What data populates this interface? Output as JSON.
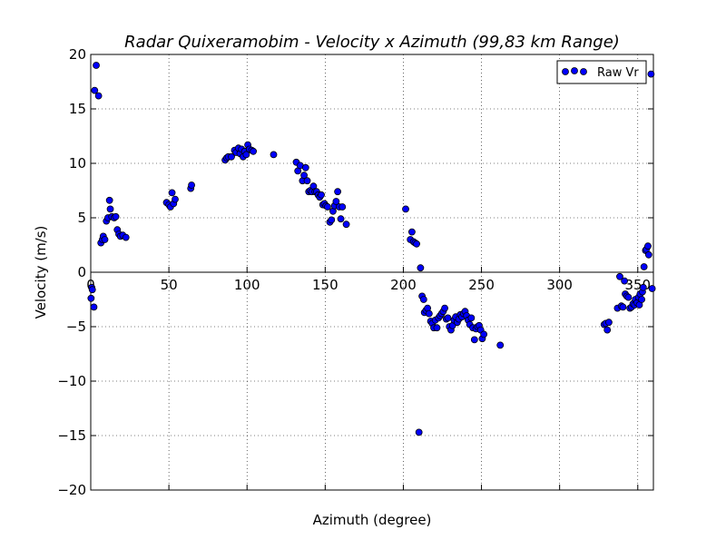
{
  "chart_data": {
    "type": "scatter",
    "title": "Radar Quixeramobim - Velocity x Azimuth (99,83 km Range)",
    "xlabel": "Azimuth (degree)",
    "ylabel": "Velocity (m/s)",
    "xlim": [
      0,
      360
    ],
    "ylim": [
      -20,
      20
    ],
    "x_ticks": [
      0,
      50,
      100,
      150,
      200,
      250,
      300,
      350
    ],
    "y_ticks": [
      -20,
      -15,
      -10,
      -5,
      0,
      5,
      10,
      15,
      20
    ],
    "x_tick_labels": [
      "0",
      "50",
      "100",
      "150",
      "200",
      "250",
      "300",
      "350"
    ],
    "y_tick_labels": [
      "−20",
      "−15",
      "−10",
      "−5",
      "0",
      "5",
      "10",
      "15",
      "20"
    ],
    "grid": true,
    "legend_position": "top-right",
    "series": [
      {
        "name": "Raw Vr",
        "color": "#0000ff",
        "points": [
          [
            0.2,
            -2.4
          ],
          [
            0.6,
            -1.4
          ],
          [
            1.0,
            -1.6
          ],
          [
            2.0,
            -3.2
          ],
          [
            2.5,
            16.7
          ],
          [
            3.5,
            19.0
          ],
          [
            5.0,
            16.2
          ],
          [
            6.5,
            2.7
          ],
          [
            7.5,
            3.0
          ],
          [
            8.0,
            3.3
          ],
          [
            9.0,
            3.0
          ],
          [
            10.0,
            4.7
          ],
          [
            11.0,
            5.0
          ],
          [
            12.0,
            6.6
          ],
          [
            12.5,
            5.8
          ],
          [
            13.5,
            5.1
          ],
          [
            15.0,
            5.0
          ],
          [
            16.0,
            5.1
          ],
          [
            17.0,
            3.9
          ],
          [
            18.0,
            3.5
          ],
          [
            19.0,
            3.3
          ],
          [
            20.5,
            3.4
          ],
          [
            22.5,
            3.2
          ],
          [
            48.5,
            6.4
          ],
          [
            50.0,
            6.2
          ],
          [
            51.0,
            6.0
          ],
          [
            52.0,
            7.3
          ],
          [
            53.0,
            6.3
          ],
          [
            54.0,
            6.7
          ],
          [
            64.0,
            7.7
          ],
          [
            64.5,
            8.0
          ],
          [
            86.0,
            10.3
          ],
          [
            87.0,
            10.5
          ],
          [
            88.0,
            10.6
          ],
          [
            90.0,
            10.6
          ],
          [
            92.0,
            11.2
          ],
          [
            93.0,
            11.0
          ],
          [
            94.5,
            11.4
          ],
          [
            95.5,
            10.9
          ],
          [
            96.5,
            11.3
          ],
          [
            97.5,
            10.6
          ],
          [
            98.5,
            11.1
          ],
          [
            99.5,
            10.8
          ],
          [
            100.5,
            11.7
          ],
          [
            101.5,
            11.3
          ],
          [
            103.0,
            11.2
          ],
          [
            104.0,
            11.1
          ],
          [
            117.0,
            10.8
          ],
          [
            131.5,
            10.1
          ],
          [
            132.5,
            9.3
          ],
          [
            134.0,
            9.8
          ],
          [
            135.5,
            8.4
          ],
          [
            136.5,
            8.9
          ],
          [
            137.5,
            9.6
          ],
          [
            138.5,
            8.4
          ],
          [
            139.5,
            7.4
          ],
          [
            140.5,
            7.5
          ],
          [
            141.5,
            7.4
          ],
          [
            142.5,
            7.9
          ],
          [
            143.5,
            7.4
          ],
          [
            144.5,
            7.4
          ],
          [
            145.5,
            7.1
          ],
          [
            146.5,
            6.9
          ],
          [
            147.5,
            7.1
          ],
          [
            148.5,
            6.2
          ],
          [
            149.5,
            6.3
          ],
          [
            150.5,
            6.1
          ],
          [
            151.5,
            6.0
          ],
          [
            153.0,
            4.6
          ],
          [
            154.0,
            4.8
          ],
          [
            155.0,
            5.6
          ],
          [
            156.0,
            6.1
          ],
          [
            157.0,
            6.5
          ],
          [
            158.0,
            7.4
          ],
          [
            159.0,
            6.0
          ],
          [
            160.0,
            4.9
          ],
          [
            161.0,
            6.0
          ],
          [
            163.5,
            4.4
          ],
          [
            201.5,
            5.8
          ],
          [
            204.5,
            3.0
          ],
          [
            205.5,
            3.7
          ],
          [
            206.5,
            2.8
          ],
          [
            207.5,
            2.7
          ],
          [
            208.5,
            2.6
          ],
          [
            210.0,
            -14.7
          ],
          [
            211.0,
            0.4
          ],
          [
            212.0,
            -2.2
          ],
          [
            213.0,
            -2.5
          ],
          [
            213.5,
            -3.7
          ],
          [
            214.5,
            -3.5
          ],
          [
            215.5,
            -3.3
          ],
          [
            216.5,
            -3.8
          ],
          [
            217.5,
            -4.5
          ],
          [
            218.5,
            -4.7
          ],
          [
            219.5,
            -5.1
          ],
          [
            220.5,
            -4.4
          ],
          [
            221.5,
            -5.1
          ],
          [
            222.5,
            -4.2
          ],
          [
            223.5,
            -4.0
          ],
          [
            224.5,
            -3.8
          ],
          [
            225.5,
            -3.6
          ],
          [
            226.5,
            -3.3
          ],
          [
            227.5,
            -4.3
          ],
          [
            228.5,
            -4.2
          ],
          [
            229.5,
            -5.0
          ],
          [
            230.5,
            -5.3
          ],
          [
            231.5,
            -4.9
          ],
          [
            232.5,
            -4.4
          ],
          [
            233.5,
            -4.1
          ],
          [
            234.5,
            -4.6
          ],
          [
            235.5,
            -4.3
          ],
          [
            236.5,
            -3.9
          ],
          [
            237.5,
            -4.1
          ],
          [
            238.5,
            -3.8
          ],
          [
            239.5,
            -3.6
          ],
          [
            240.5,
            -4.0
          ],
          [
            241.5,
            -4.4
          ],
          [
            242.5,
            -4.8
          ],
          [
            243.5,
            -4.2
          ],
          [
            244.5,
            -5.1
          ],
          [
            245.5,
            -6.2
          ],
          [
            246.5,
            -5.2
          ],
          [
            247.5,
            -5.0
          ],
          [
            248.5,
            -4.9
          ],
          [
            249.5,
            -5.3
          ],
          [
            250.5,
            -6.1
          ],
          [
            251.5,
            -5.7
          ],
          [
            262.0,
            -6.7
          ],
          [
            328.5,
            -4.8
          ],
          [
            329.5,
            -4.7
          ],
          [
            330.5,
            -5.3
          ],
          [
            331.5,
            -4.6
          ],
          [
            337.0,
            -3.3
          ],
          [
            338.5,
            -0.4
          ],
          [
            339.5,
            -3.1
          ],
          [
            340.5,
            -3.2
          ],
          [
            341.5,
            -0.8
          ],
          [
            342.0,
            -2.0
          ],
          [
            343.0,
            -2.2
          ],
          [
            344.0,
            -2.3
          ],
          [
            345.0,
            -3.3
          ],
          [
            346.0,
            -3.2
          ],
          [
            347.0,
            -2.9
          ],
          [
            348.0,
            -3.0
          ],
          [
            348.5,
            -2.5
          ],
          [
            349.5,
            -2.8
          ],
          [
            350.5,
            -2.3
          ],
          [
            351.0,
            -3.0
          ],
          [
            351.5,
            -2.0
          ],
          [
            352.5,
            -2.5
          ],
          [
            353.0,
            -1.8
          ],
          [
            353.5,
            -1.4
          ],
          [
            354.0,
            0.5
          ],
          [
            355.0,
            2.0
          ],
          [
            355.5,
            2.1
          ],
          [
            356.5,
            2.4
          ],
          [
            357.0,
            1.6
          ],
          [
            358.5,
            18.2
          ],
          [
            359.2,
            -1.5
          ]
        ]
      }
    ]
  }
}
